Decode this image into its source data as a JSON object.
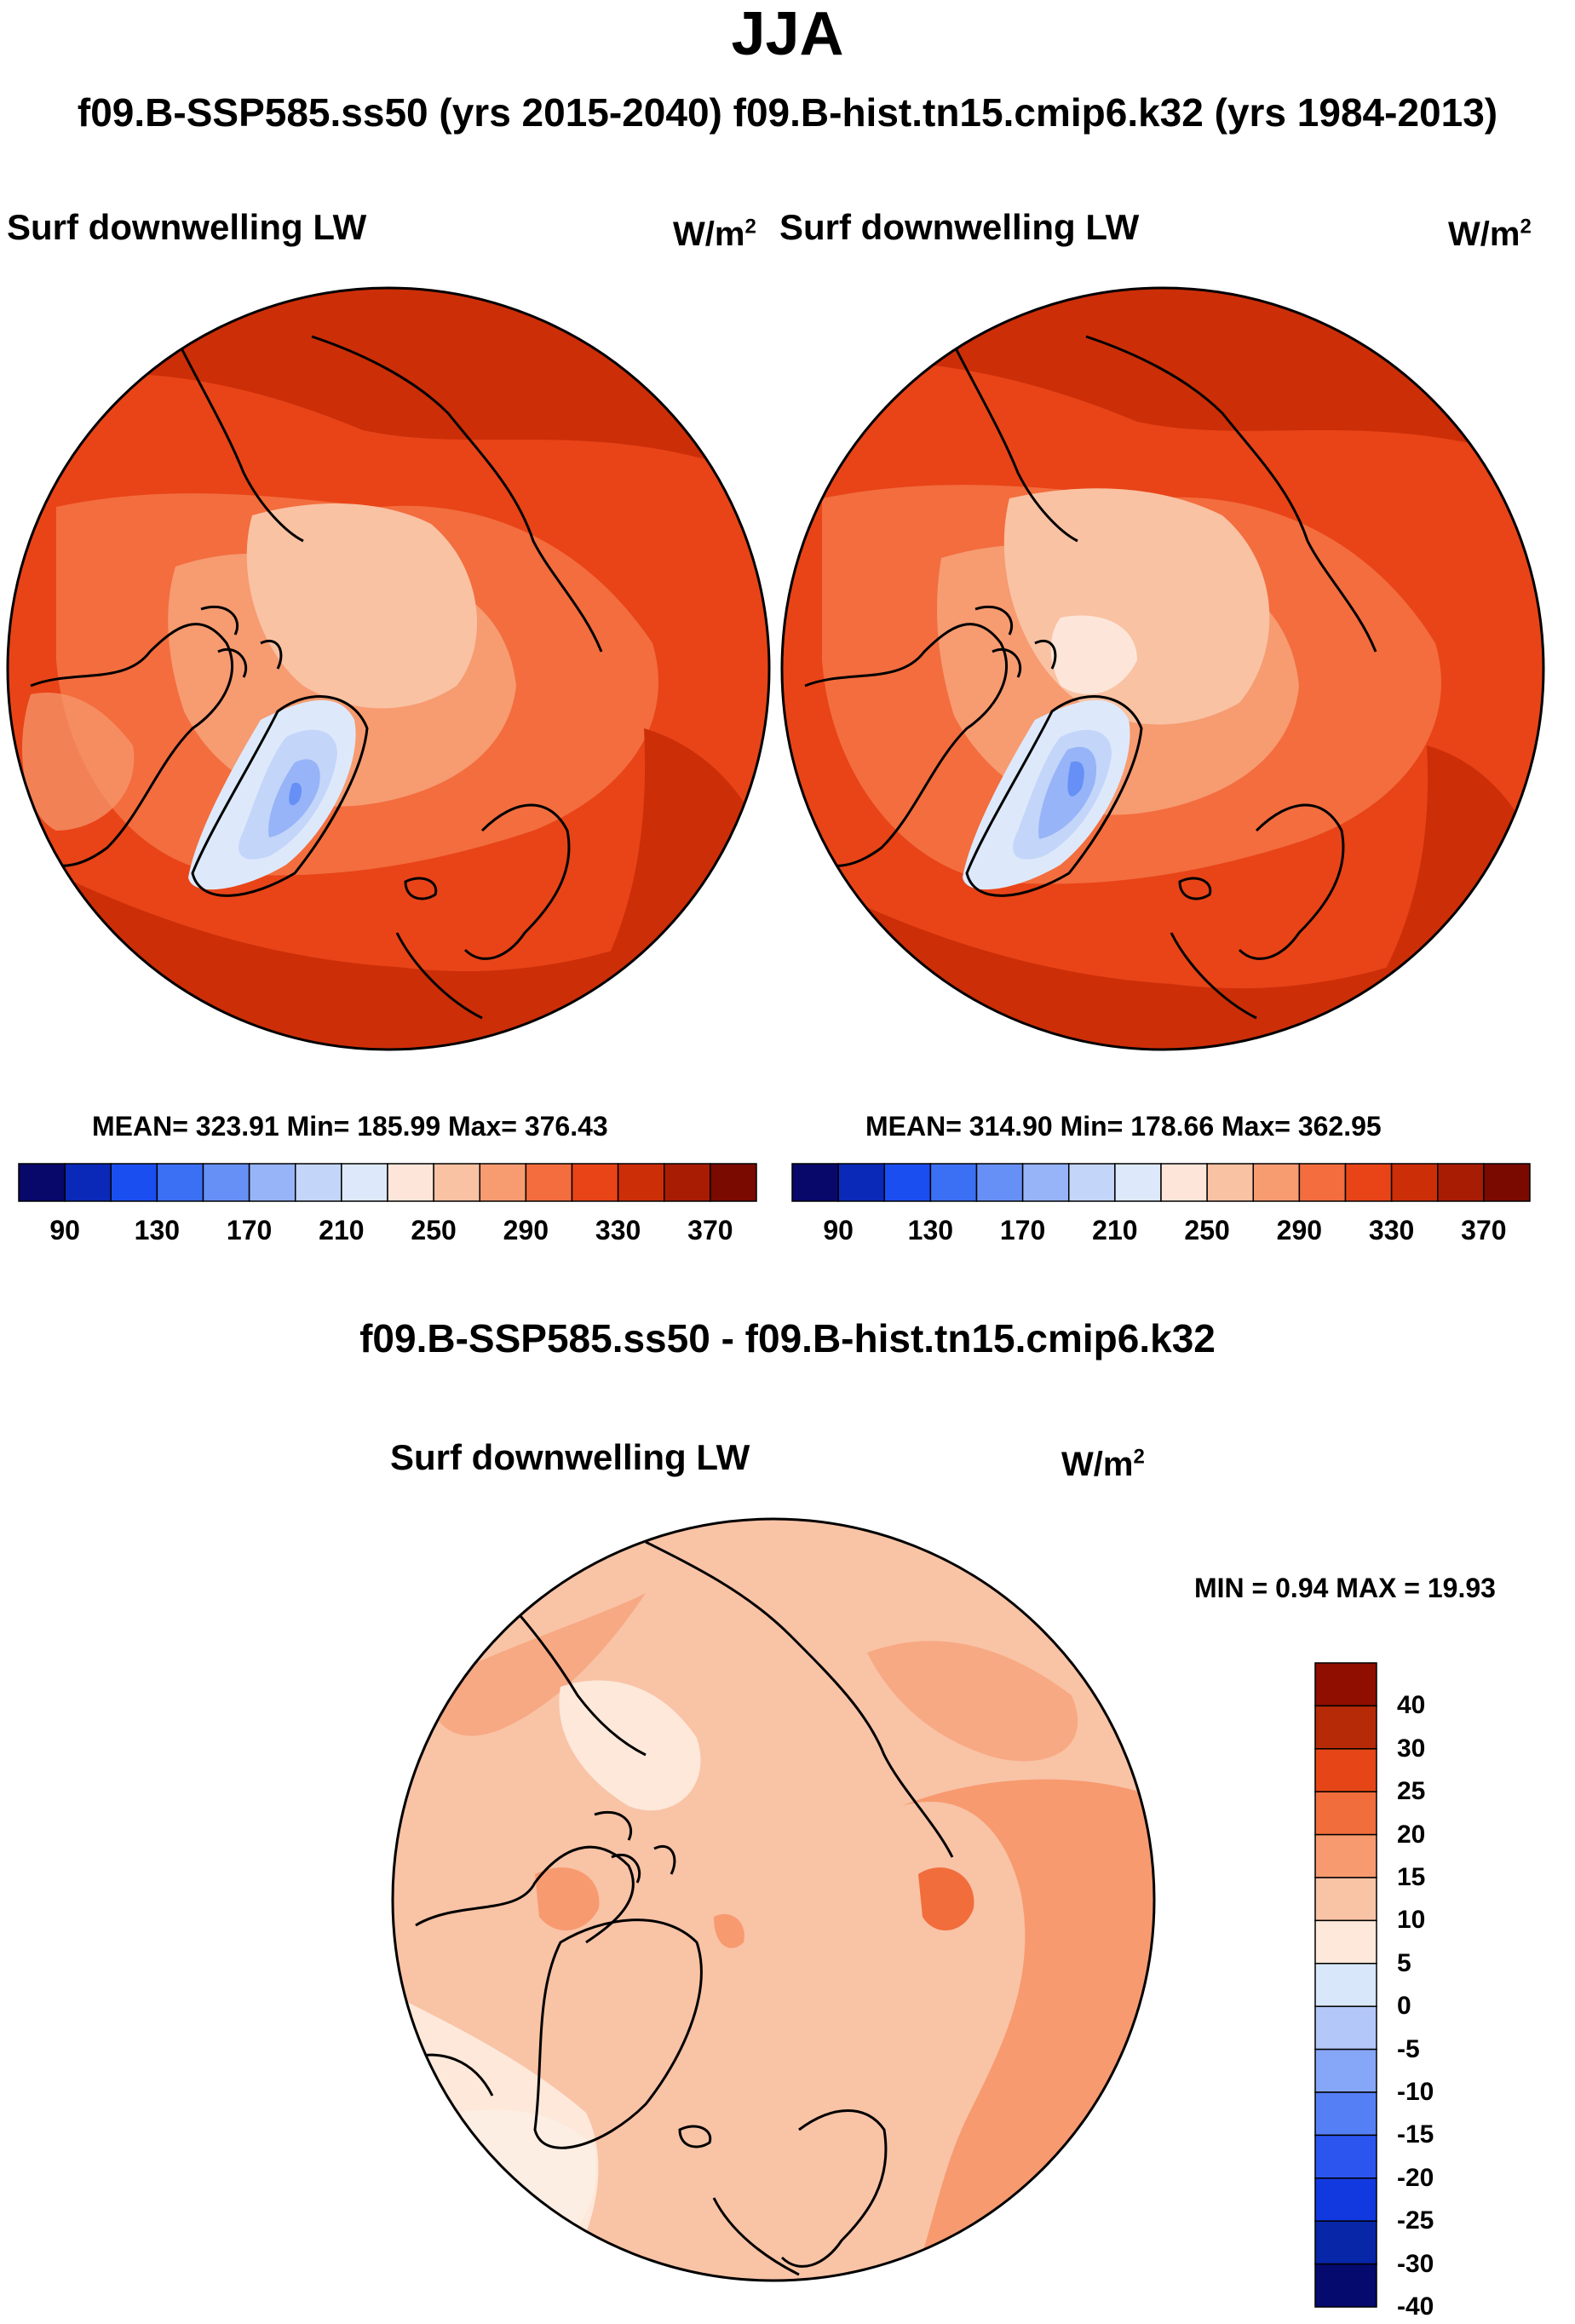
{
  "title": "JJA",
  "subtitle": "f09.B-SSP585.ss50 (yrs 2015-2040)  f09.B-hist.tn15.cmip6.k32 (yrs 1984-2013)",
  "colors": {
    "abs_scale": [
      "#08086b",
      "#0a29b8",
      "#1a4ef0",
      "#3b70f5",
      "#6690f5",
      "#96b4f7",
      "#c3d5f9",
      "#dde9fb",
      "#fde6d9",
      "#f9c2a3",
      "#f79b71",
      "#f36d3e",
      "#e84418",
      "#cc2e08",
      "#a81c04",
      "#7a0a00"
    ],
    "diff_scale": [
      "#050a6e",
      "#0826a8",
      "#1238e0",
      "#2c55f0",
      "#5580f5",
      "#86a6f7",
      "#b3c7f8",
      "#d8e7fa",
      "#fde8da",
      "#f9c3a6",
      "#f79a70",
      "#f16d3c",
      "#e64617",
      "#b72a07",
      "#8f0e00"
    ]
  },
  "panels": [
    {
      "id": "scenario",
      "var_label": "Surf downwelling LW",
      "unit_base": "W/m",
      "unit_exp": "2",
      "stats": "MEAN= 323.91  Min= 185.99  Max= 376.43",
      "colorbar_ticks": [
        "90",
        "130",
        "170",
        "210",
        "250",
        "290",
        "330",
        "370"
      ]
    },
    {
      "id": "historical",
      "var_label": "Surf downwelling LW",
      "unit_base": "W/m",
      "unit_exp": "2",
      "stats": "MEAN= 314.90  Min= 178.66  Max= 362.95",
      "colorbar_ticks": [
        "90",
        "130",
        "170",
        "210",
        "250",
        "290",
        "330",
        "370"
      ]
    }
  ],
  "difference": {
    "title": "f09.B-SSP585.ss50 - f09.B-hist.tn15.cmip6.k32",
    "var_label": "Surf downwelling LW",
    "unit_base": "W/m",
    "unit_exp": "2",
    "stats": "MIN =   0.94 MAX =  19.93",
    "colorbar_ticks": [
      "40",
      "30",
      "25",
      "20",
      "15",
      "10",
      "5",
      "0",
      "-5",
      "-10",
      "-15",
      "-20",
      "-25",
      "-30",
      "-40"
    ]
  }
}
